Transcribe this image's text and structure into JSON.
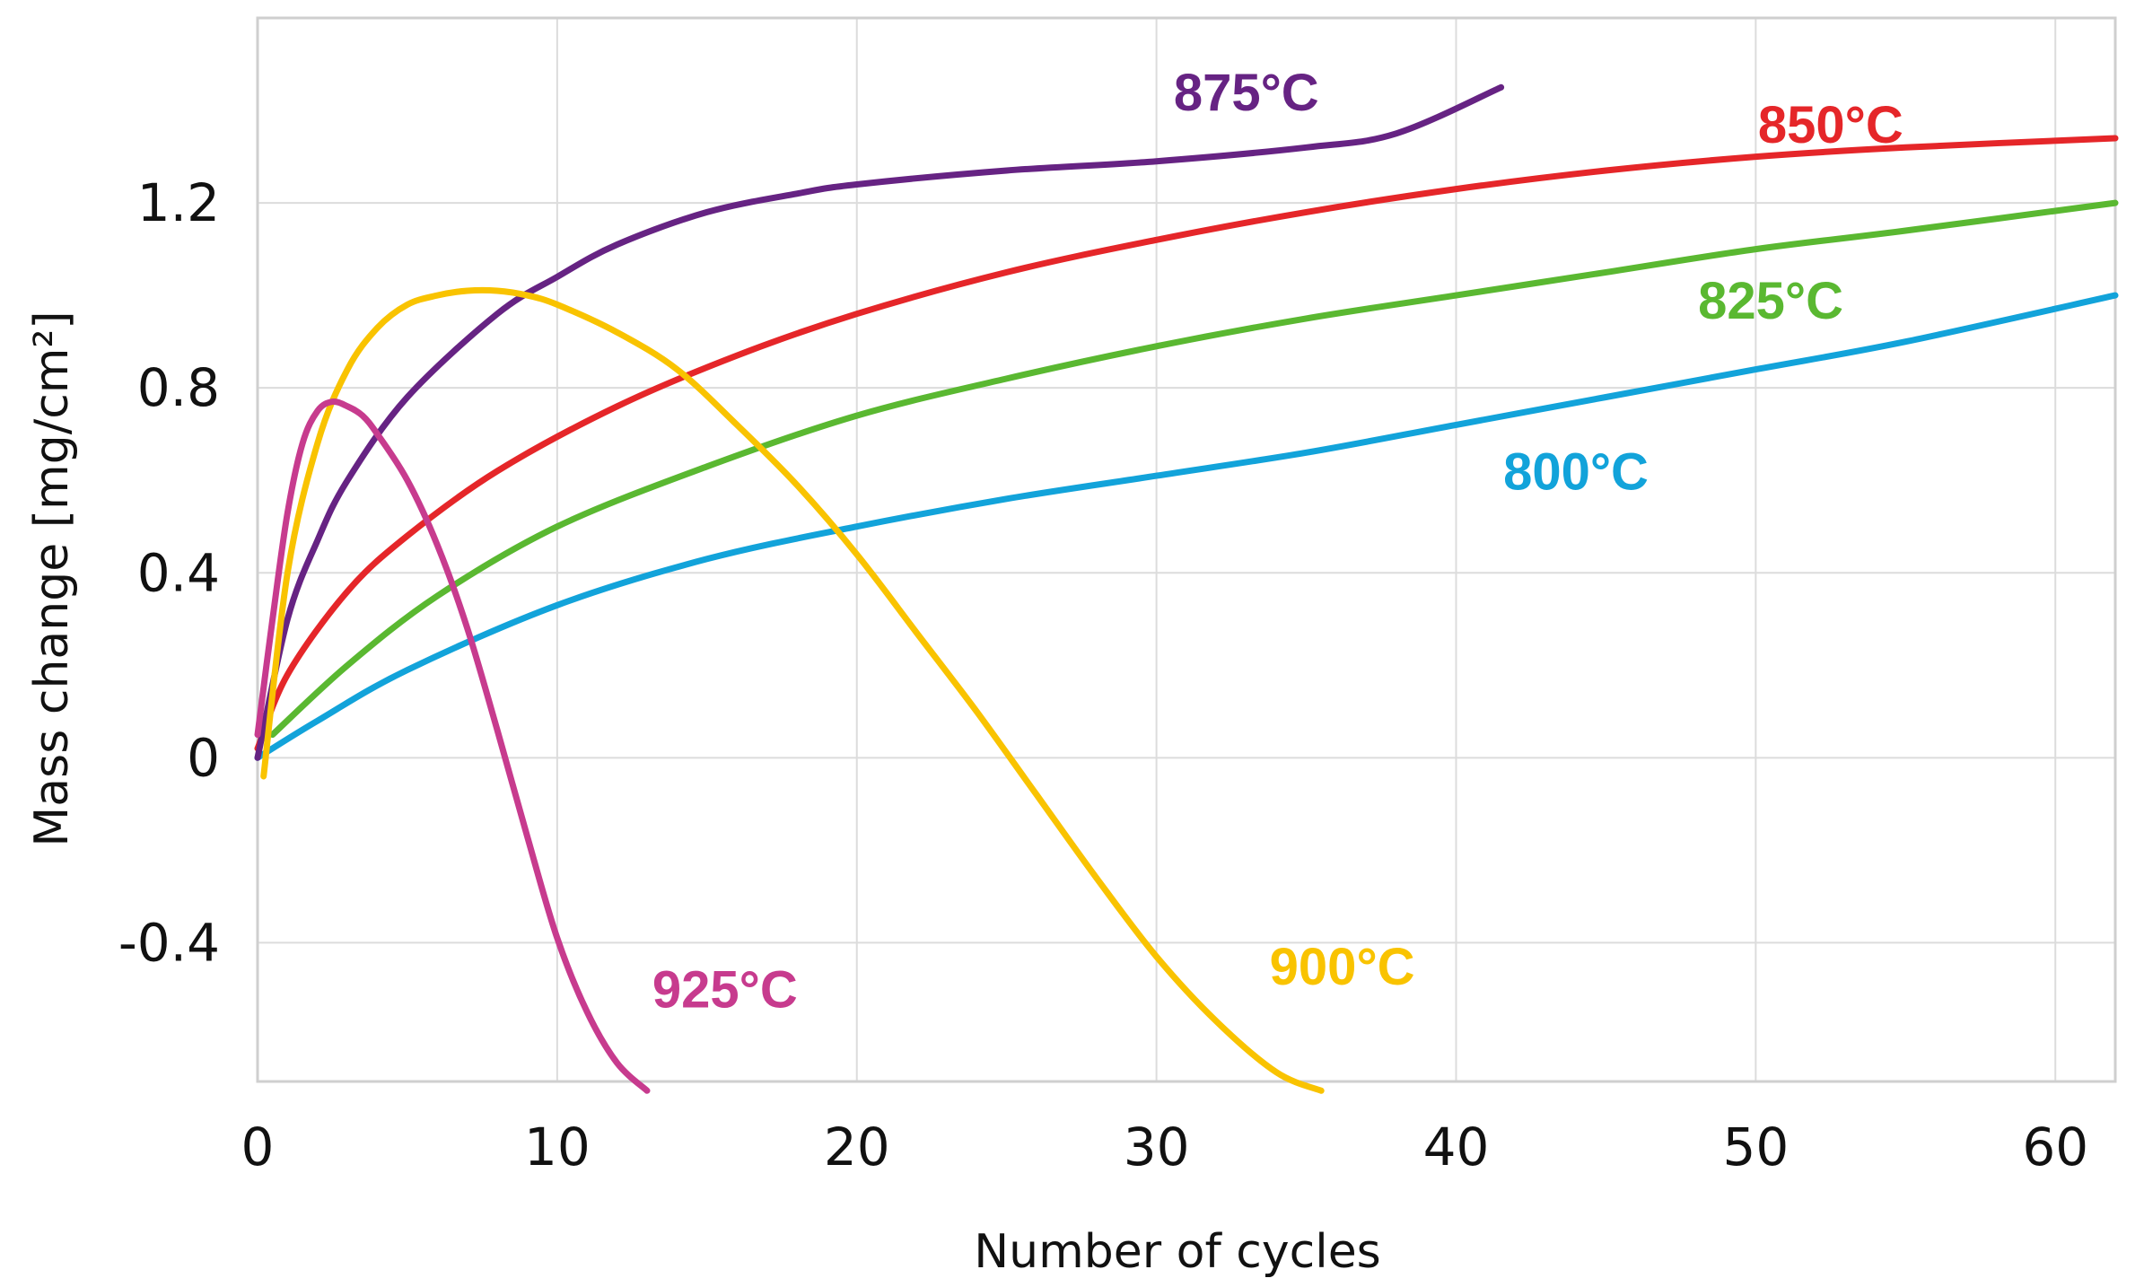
{
  "chart_data": {
    "type": "line",
    "title": "",
    "xlabel": "Number of cycles",
    "ylabel": "Mass change [mg/cm²]",
    "xlim": [
      0,
      62
    ],
    "ylim": [
      -0.7,
      1.6
    ],
    "xticks": [
      0,
      10,
      20,
      30,
      40,
      50,
      60
    ],
    "yticks": [
      -0.4,
      0,
      0.4,
      0.8,
      1.2
    ],
    "xtick_labels": [
      "0",
      "10",
      "20",
      "30",
      "40",
      "50",
      "60"
    ],
    "ytick_labels": [
      "-0.4",
      "0",
      "0.4",
      "0.8",
      "1.2"
    ],
    "grid": true,
    "series": [
      {
        "name": "800°C",
        "label": "800°C",
        "color": "#12a3da",
        "x": [
          0,
          2,
          5,
          10,
          15,
          20,
          25,
          30,
          35,
          40,
          45,
          50,
          55,
          62
        ],
        "y": [
          0.0,
          0.08,
          0.19,
          0.33,
          0.43,
          0.5,
          0.56,
          0.61,
          0.66,
          0.72,
          0.78,
          0.84,
          0.9,
          1.0
        ]
      },
      {
        "name": "825°C",
        "label": "825°C",
        "color": "#5ab831",
        "x": [
          0.5,
          3,
          6,
          10,
          15,
          20,
          25,
          30,
          35,
          40,
          45,
          50,
          55,
          62
        ],
        "y": [
          0.05,
          0.2,
          0.35,
          0.5,
          0.63,
          0.74,
          0.82,
          0.89,
          0.95,
          1.0,
          1.05,
          1.1,
          1.14,
          1.2
        ]
      },
      {
        "name": "850°C",
        "label": "850°C",
        "color": "#e52629",
        "x": [
          0,
          1,
          3,
          5,
          8,
          12,
          16,
          20,
          25,
          30,
          35,
          40,
          45,
          50,
          55,
          62
        ],
        "y": [
          0.02,
          0.18,
          0.36,
          0.48,
          0.62,
          0.76,
          0.87,
          0.96,
          1.05,
          1.12,
          1.18,
          1.23,
          1.27,
          1.3,
          1.32,
          1.34
        ]
      },
      {
        "name": "875°C",
        "label": "875°C",
        "color": "#662383",
        "x": [
          0,
          1,
          2,
          3,
          5,
          8,
          10,
          12,
          15,
          18,
          20,
          25,
          30,
          35,
          38,
          41.5
        ],
        "y": [
          0.0,
          0.3,
          0.47,
          0.6,
          0.78,
          0.96,
          1.04,
          1.11,
          1.18,
          1.22,
          1.24,
          1.27,
          1.29,
          1.32,
          1.35,
          1.45
        ]
      },
      {
        "name": "900°C",
        "label": "900°C",
        "color": "#f9c300",
        "x": [
          0.2,
          1,
          2,
          3,
          4,
          5,
          6,
          7,
          8,
          9,
          10,
          12,
          14,
          16,
          18,
          20,
          22,
          24,
          26,
          28,
          30,
          32,
          34,
          35.5
        ],
        "y": [
          -0.04,
          0.4,
          0.68,
          0.84,
          0.93,
          0.98,
          1.0,
          1.01,
          1.01,
          1.0,
          0.98,
          0.92,
          0.84,
          0.72,
          0.59,
          0.44,
          0.27,
          0.1,
          -0.08,
          -0.26,
          -0.43,
          -0.57,
          -0.68,
          -0.72
        ]
      },
      {
        "name": "925°C",
        "label": "925°C",
        "color": "#c73b8e",
        "x": [
          0,
          0.5,
          1,
          1.5,
          2,
          2.5,
          3,
          3.5,
          4,
          5,
          6,
          7,
          8,
          9,
          10,
          11,
          12,
          13
        ],
        "y": [
          0.05,
          0.3,
          0.53,
          0.68,
          0.75,
          0.77,
          0.76,
          0.74,
          0.7,
          0.6,
          0.46,
          0.28,
          0.06,
          -0.17,
          -0.39,
          -0.55,
          -0.66,
          -0.72
        ]
      }
    ]
  }
}
